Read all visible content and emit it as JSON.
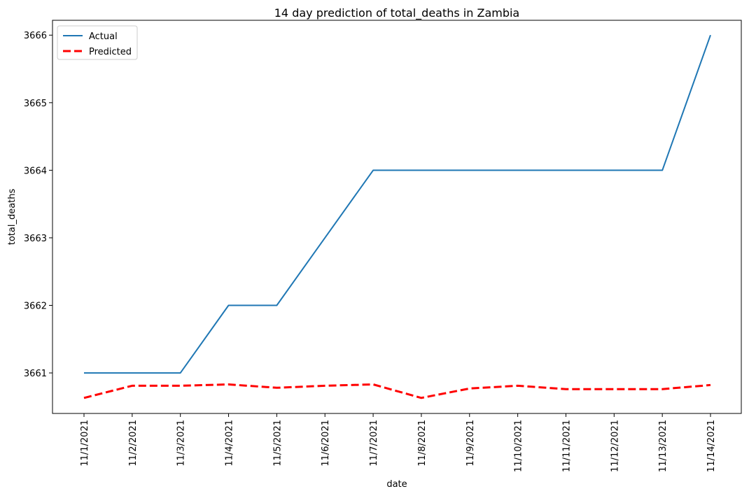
{
  "chart_data": {
    "type": "line",
    "title": "14 day prediction of total_deaths in Zambia",
    "xlabel": "date",
    "ylabel": "total_deaths",
    "categories": [
      "11/1/2021",
      "11/2/2021",
      "11/3/2021",
      "11/4/2021",
      "11/5/2021",
      "11/6/2021",
      "11/7/2021",
      "11/8/2021",
      "11/9/2021",
      "11/10/2021",
      "11/11/2021",
      "11/12/2021",
      "11/13/2021",
      "11/14/2021"
    ],
    "series": [
      {
        "name": "Actual",
        "color": "#1f77b4",
        "style": "solid",
        "values": [
          3661,
          3661,
          3661,
          3662,
          3662,
          3663,
          3664,
          3664,
          3664,
          3664,
          3664,
          3664,
          3664,
          3666
        ]
      },
      {
        "name": "Predicted",
        "color": "#ff0000",
        "style": "dashed",
        "values": [
          3660.63,
          3660.81,
          3660.81,
          3660.83,
          3660.78,
          3660.81,
          3660.83,
          3660.63,
          3660.77,
          3660.81,
          3660.76,
          3660.76,
          3660.76,
          3660.82
        ]
      }
    ],
    "ylim": [
      3660.4,
      3666.22
    ],
    "yticks": [
      3661,
      3662,
      3663,
      3664,
      3665,
      3666
    ],
    "grid": false,
    "legend_position": "top-left"
  }
}
